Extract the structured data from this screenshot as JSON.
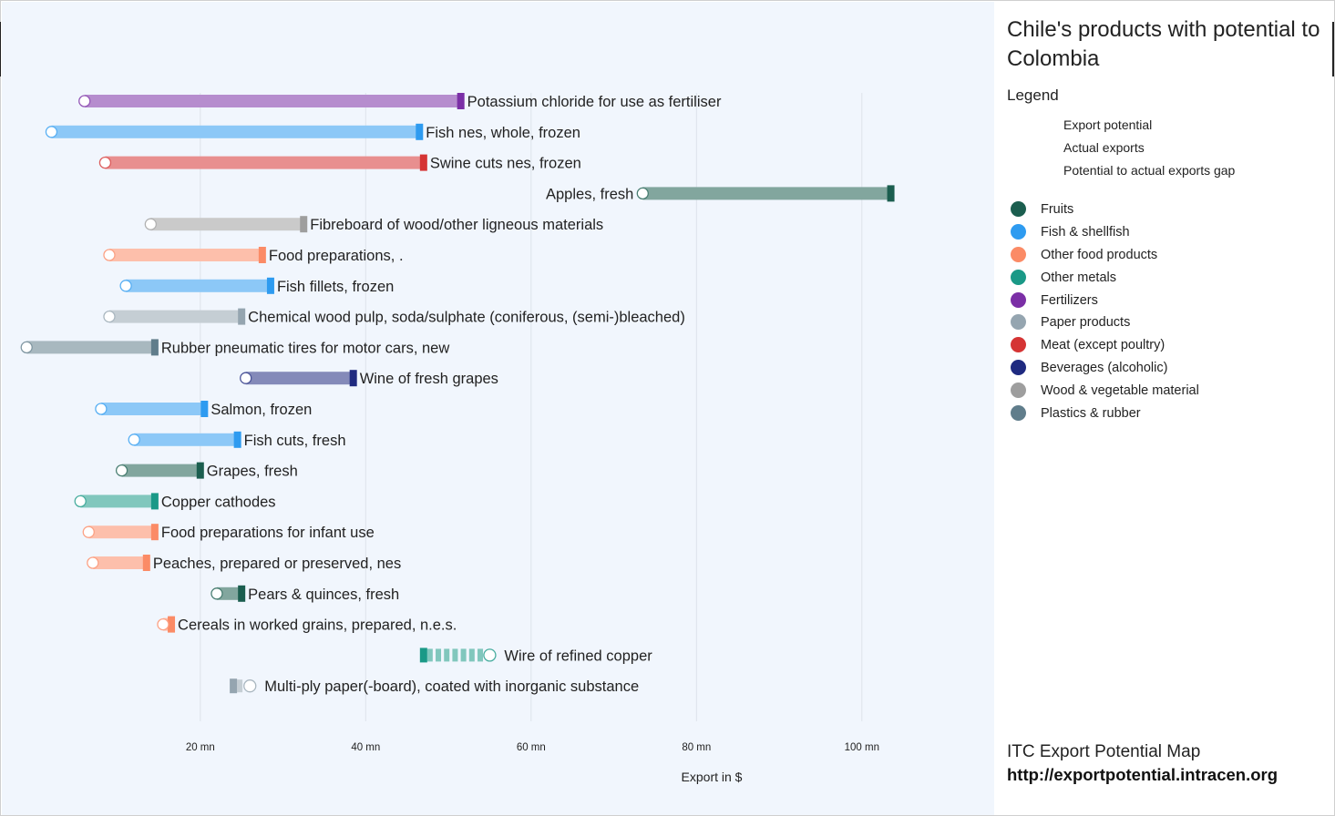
{
  "title": "Chile's products with potential to Colombia",
  "legend_heading": "Legend",
  "type_legend": [
    {
      "key": "potential",
      "label": "Export potential"
    },
    {
      "key": "actual",
      "label": "Actual exports"
    },
    {
      "key": "gap",
      "label": "Potential to actual exports gap"
    }
  ],
  "categories": [
    {
      "name": "Fruits",
      "color": "#1b5e4f"
    },
    {
      "name": "Fish & shellfish",
      "color": "#2e9bf0"
    },
    {
      "name": "Other food products",
      "color": "#fb8b66"
    },
    {
      "name": "Other metals",
      "color": "#1a9987"
    },
    {
      "name": "Fertilizers",
      "color": "#7b2fa6"
    },
    {
      "name": "Paper products",
      "color": "#95a5b0"
    },
    {
      "name": "Meat (except poultry)",
      "color": "#d53434"
    },
    {
      "name": "Beverages (alcoholic)",
      "color": "#1f2a80"
    },
    {
      "name": "Wood & vegetable material",
      "color": "#9e9e9e"
    },
    {
      "name": "Plastics & rubber",
      "color": "#607d8b"
    }
  ],
  "footer": {
    "name": "ITC Export Potential Map",
    "url": "http://exportpotential.intracen.org"
  },
  "chart_data": {
    "type": "dumbbell",
    "xlabel": "Export in $",
    "x_unit": "mn",
    "xlim": [
      -4,
      116
    ],
    "xticks": [
      {
        "value": 20,
        "label": "20 mn"
      },
      {
        "value": 40,
        "label": "40 mn"
      },
      {
        "value": 60,
        "label": "60 mn"
      },
      {
        "value": 80,
        "label": "80 mn"
      },
      {
        "value": 100,
        "label": "100 mn"
      }
    ],
    "grid": true,
    "products": [
      {
        "name": "Potassium chloride for use as fertiliser",
        "category": "Fertilizers",
        "actual": 6.0,
        "potential": 51.5
      },
      {
        "name": "Fish nes, whole, frozen",
        "category": "Fish & shellfish",
        "actual": 2.0,
        "potential": 46.5
      },
      {
        "name": "Swine cuts nes, frozen",
        "category": "Meat (except poultry)",
        "actual": 8.5,
        "potential": 47.0
      },
      {
        "name": "Apples, fresh",
        "category": "Fruits",
        "actual": 73.5,
        "potential": 103.5
      },
      {
        "name": "Fibreboard of wood/other ligneous materials",
        "category": "Wood & vegetable material",
        "actual": 14.0,
        "potential": 32.5
      },
      {
        "name": "Food preparations, .",
        "category": "Other food products",
        "actual": 9.0,
        "potential": 27.5
      },
      {
        "name": "Fish fillets, frozen",
        "category": "Fish & shellfish",
        "actual": 11.0,
        "potential": 28.5
      },
      {
        "name": "Chemical wood pulp, soda/sulphate (coniferous, (semi-)bleached)",
        "category": "Paper products",
        "actual": 9.0,
        "potential": 25.0
      },
      {
        "name": "Rubber pneumatic tires for motor cars, new",
        "category": "Plastics & rubber",
        "actual": -1.0,
        "potential": 14.5
      },
      {
        "name": "Wine of fresh grapes",
        "category": "Beverages (alcoholic)",
        "actual": 25.5,
        "potential": 38.5
      },
      {
        "name": "Salmon, frozen",
        "category": "Fish & shellfish",
        "actual": 8.0,
        "potential": 20.5
      },
      {
        "name": "Fish cuts, fresh",
        "category": "Fish & shellfish",
        "actual": 12.0,
        "potential": 24.5
      },
      {
        "name": "Grapes, fresh",
        "category": "Fruits",
        "actual": 10.5,
        "potential": 20.0
      },
      {
        "name": "Copper cathodes",
        "category": "Other metals",
        "actual": 5.5,
        "potential": 14.5
      },
      {
        "name": "Food preparations for infant use",
        "category": "Other food products",
        "actual": 6.5,
        "potential": 14.5
      },
      {
        "name": "Peaches, prepared or preserved, nes",
        "category": "Other food products",
        "actual": 7.0,
        "potential": 13.5
      },
      {
        "name": "Pears & quinces, fresh",
        "category": "Fruits",
        "actual": 22.0,
        "potential": 25.0
      },
      {
        "name": "Cereals in worked grains, prepared, n.e.s.",
        "category": "Other food products",
        "actual": 15.5,
        "potential": 16.5
      },
      {
        "name": "Wire of refined copper",
        "category": "Other metals",
        "actual": 55.0,
        "potential": 47.0
      },
      {
        "name": "Multi-ply paper(-board), coated with inorganic substance",
        "category": "Paper products",
        "actual": 26.0,
        "potential": 24.0
      }
    ]
  }
}
